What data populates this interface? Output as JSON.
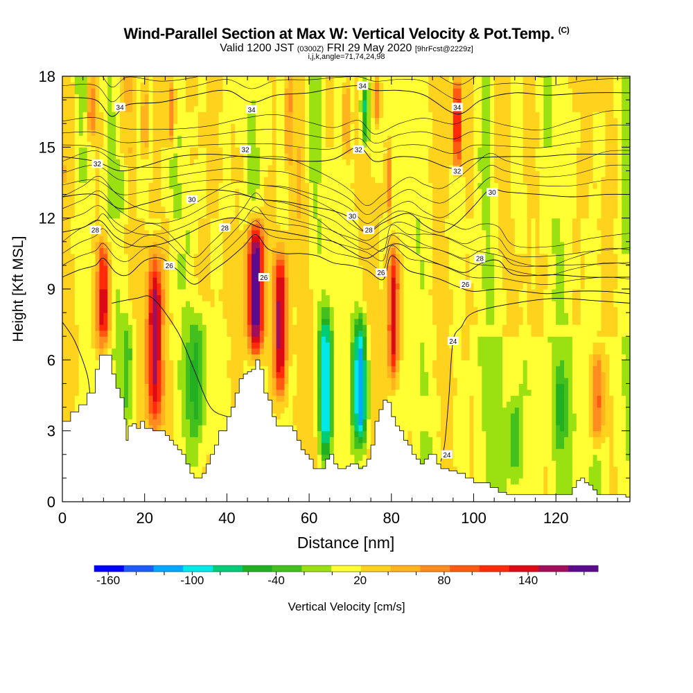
{
  "chart_data": {
    "type": "heatmap",
    "title": "Wind-Parallel Section at Max W: Vertical Velocity & Pot.Temp.",
    "title_mark": "(C)",
    "subtitle_a": "Valid 1200 JST",
    "subtitle_b": "(0300Z)",
    "subtitle_c": "FRI 29 May 2020",
    "subtitle_d": "[9hrFcst@2229z]",
    "subtitle_line2": "i,j,k,angle=71,74,24,98",
    "xlabel": "Distance [nm]",
    "ylabel": "Height [Kft MSL]",
    "xlim": [
      0,
      138
    ],
    "ylim": [
      0,
      18
    ],
    "x_ticks": [
      "0",
      "20",
      "40",
      "60",
      "80",
      "100",
      "120"
    ],
    "y_ticks": [
      "0",
      "3",
      "6",
      "9",
      "12",
      "15",
      "18"
    ],
    "colorbar": {
      "label": "Vertical Velocity [cm/s]",
      "min": -170,
      "max": 190,
      "step": 20,
      "tick_labels": [
        "-160",
        "-100",
        "-40",
        "20",
        "80",
        "140"
      ],
      "colors": [
        "#0000ff",
        "#1e5bff",
        "#00a8ff",
        "#00e8e8",
        "#00cc77",
        "#22b022",
        "#44c01e",
        "#9be010",
        "#ffff33",
        "#ffd21e",
        "#ffb41e",
        "#ff8c1e",
        "#ff5a14",
        "#ff2a0a",
        "#dc0a14",
        "#a0105a",
        "#5a0a8c"
      ]
    },
    "terrain_profile": [
      [
        0,
        3.4
      ],
      [
        2,
        3.8
      ],
      [
        4,
        4.1
      ],
      [
        6,
        4.6
      ],
      [
        8,
        5.6
      ],
      [
        9,
        6.2
      ],
      [
        11,
        6.2
      ],
      [
        12,
        5.4
      ],
      [
        13,
        4.8
      ],
      [
        14,
        4.4
      ],
      [
        15,
        3.5
      ],
      [
        15.5,
        2.6
      ],
      [
        16,
        3.2
      ],
      [
        17,
        3.3
      ],
      [
        18,
        3.1
      ],
      [
        19,
        3.4
      ],
      [
        20,
        3.1
      ],
      [
        22,
        3.0
      ],
      [
        24,
        3.0
      ],
      [
        25,
        2.8
      ],
      [
        26,
        2.6
      ],
      [
        27,
        2.4
      ],
      [
        28,
        2.2
      ],
      [
        29,
        2.0
      ],
      [
        30,
        1.6
      ],
      [
        31,
        1.2
      ],
      [
        32,
        1.0
      ],
      [
        33,
        1.0
      ],
      [
        34,
        1.2
      ],
      [
        35,
        1.6
      ],
      [
        36,
        2.0
      ],
      [
        37,
        2.4
      ],
      [
        38,
        3.0
      ],
      [
        40,
        3.6
      ],
      [
        41,
        4.0
      ],
      [
        42,
        4.6
      ],
      [
        43,
        5.2
      ],
      [
        44,
        5.4
      ],
      [
        45,
        5.5
      ],
      [
        46,
        5.6
      ],
      [
        47,
        6.0
      ],
      [
        48,
        5.6
      ],
      [
        49,
        4.6
      ],
      [
        50,
        4.3
      ],
      [
        51,
        3.6
      ],
      [
        52,
        3.2
      ],
      [
        55,
        3.2
      ],
      [
        56,
        3.0
      ],
      [
        57,
        2.6
      ],
      [
        58,
        2.2
      ],
      [
        59,
        2.0
      ],
      [
        60,
        1.8
      ],
      [
        61,
        1.4
      ],
      [
        62,
        1.4
      ],
      [
        63,
        1.4
      ],
      [
        64,
        1.8
      ],
      [
        65,
        2.0
      ],
      [
        66,
        1.6
      ],
      [
        67,
        1.4
      ],
      [
        68,
        1.4
      ],
      [
        69,
        1.5
      ],
      [
        70,
        1.6
      ],
      [
        71,
        1.6
      ],
      [
        72,
        1.4
      ],
      [
        73,
        1.5
      ],
      [
        74,
        1.8
      ],
      [
        75,
        2.4
      ],
      [
        76,
        3.4
      ],
      [
        77,
        3.9
      ],
      [
        78,
        4.3
      ],
      [
        79,
        4.2
      ],
      [
        80,
        3.6
      ],
      [
        81,
        3.2
      ],
      [
        82,
        3.0
      ],
      [
        83,
        2.6
      ],
      [
        84,
        2.4
      ],
      [
        85,
        2.0
      ],
      [
        86,
        1.8
      ],
      [
        87,
        1.6
      ],
      [
        88,
        1.8
      ],
      [
        89,
        2.0
      ],
      [
        90,
        2.0
      ],
      [
        91,
        1.6
      ],
      [
        92,
        1.4
      ],
      [
        93,
        1.4
      ],
      [
        94,
        1.3
      ],
      [
        96,
        1.2
      ],
      [
        98,
        1.0
      ],
      [
        100,
        0.8
      ],
      [
        102,
        0.8
      ],
      [
        104,
        0.6
      ],
      [
        106,
        0.4
      ],
      [
        108,
        0.3
      ],
      [
        110,
        0.3
      ],
      [
        112,
        0.3
      ],
      [
        114,
        0.3
      ],
      [
        116,
        0.3
      ],
      [
        118,
        0.3
      ],
      [
        120,
        0.3
      ],
      [
        122,
        0.3
      ],
      [
        124,
        0.6
      ],
      [
        125,
        0.9
      ],
      [
        126,
        1.0
      ],
      [
        127,
        0.8
      ],
      [
        128,
        0.7
      ],
      [
        129,
        0.5
      ],
      [
        130,
        0.3
      ],
      [
        132,
        0.3
      ],
      [
        134,
        0.3
      ],
      [
        136,
        0.3
      ],
      [
        137,
        0.2
      ],
      [
        138,
        0.2
      ]
    ],
    "updraft_cores": [
      {
        "x": 10,
        "y0": 6.5,
        "y1": 11,
        "w": 1.6,
        "peak": 120
      },
      {
        "x": 22.5,
        "y0": 3.2,
        "y1": 10.5,
        "w": 1.8,
        "peak": 140
      },
      {
        "x": 47,
        "y0": 6.2,
        "y1": 11.8,
        "w": 2.0,
        "peak": 190
      },
      {
        "x": 53,
        "y0": 4.5,
        "y1": 10.5,
        "w": 1.6,
        "peak": 140
      },
      {
        "x": 80.5,
        "y0": 5.2,
        "y1": 10.8,
        "w": 1.3,
        "peak": 120
      },
      {
        "x": 96,
        "y0": 14,
        "y1": 18,
        "w": 1.1,
        "peak": 120
      },
      {
        "x": 130,
        "y0": 2.4,
        "y1": 6.5,
        "w": 1.6,
        "peak": 85
      },
      {
        "x": 26.5,
        "y0": 15,
        "y1": 18,
        "w": 1.0,
        "peak": 80
      },
      {
        "x": 7,
        "y0": 15.5,
        "y1": 18,
        "w": 0.8,
        "peak": 70
      },
      {
        "x": 20,
        "y0": 14.5,
        "y1": 18,
        "w": 0.7,
        "peak": 60
      },
      {
        "x": 55,
        "y0": 14,
        "y1": 18,
        "w": 0.8,
        "peak": 60
      },
      {
        "x": 69,
        "y0": 14.5,
        "y1": 18,
        "w": 0.8,
        "peak": 70
      },
      {
        "x": 79.5,
        "y0": 12,
        "y1": 15,
        "w": 0.8,
        "peak": 60
      },
      {
        "x": 76.5,
        "y0": 16,
        "y1": 18,
        "w": 0.7,
        "peak": 60
      }
    ],
    "downdraft_cores": [
      {
        "x": 64,
        "y0": 1.8,
        "y1": 8.0,
        "w": 1.5,
        "peak": -110
      },
      {
        "x": 72.5,
        "y0": 2.4,
        "y1": 7.8,
        "w": 1.6,
        "peak": -125
      },
      {
        "x": 33,
        "y0": 2.8,
        "y1": 8.0,
        "w": 2.4,
        "peak": -60
      },
      {
        "x": 16,
        "y0": 3.5,
        "y1": 7.8,
        "w": 1.6,
        "peak": -45
      },
      {
        "x": 110,
        "y0": 0.8,
        "y1": 4.6,
        "w": 1.7,
        "peak": -40
      },
      {
        "x": 121,
        "y0": 2.2,
        "y1": 5.6,
        "w": 1.6,
        "peak": -35
      },
      {
        "x": 73.5,
        "y0": 15,
        "y1": 18,
        "w": 1.0,
        "peak": -90
      },
      {
        "x": 50,
        "y0": 14,
        "y1": 18,
        "w": 0.8,
        "peak": -30
      },
      {
        "x": 15,
        "y0": 12,
        "y1": 14.5,
        "w": 1.2,
        "peak": -30
      }
    ],
    "theta_contours": [
      {
        "level": "24",
        "points": [
          [
            0,
            7.6
          ],
          [
            3,
            6.8
          ],
          [
            6,
            5.4
          ],
          [
            7,
            4.2
          ],
          [
            8,
            4.3
          ]
        ]
      },
      {
        "level": "24",
        "points": [
          [
            12,
            8.4
          ],
          [
            18,
            8.6
          ],
          [
            22,
            8.6
          ],
          [
            28,
            7.2
          ],
          [
            32,
            5.6
          ],
          [
            36,
            4.0
          ],
          [
            40,
            3.6
          ]
        ]
      },
      {
        "level": "24",
        "points": [
          [
            92,
            1.7
          ],
          [
            93,
            2.5
          ],
          [
            94,
            4.5
          ],
          [
            95,
            6.8
          ],
          [
            97,
            7.4
          ],
          [
            100,
            8.0
          ],
          [
            110,
            8.4
          ],
          [
            120,
            8.6
          ],
          [
            130,
            8.5
          ],
          [
            138,
            8.4
          ]
        ]
      },
      {
        "level": "26",
        "points": [
          [
            0,
            9.5
          ],
          [
            4,
            9.8
          ],
          [
            8,
            10.0
          ],
          [
            10,
            10.3
          ],
          [
            13,
            9.7
          ],
          [
            16,
            9.6
          ],
          [
            20,
            10.2
          ],
          [
            24,
            10.3
          ],
          [
            28,
            9.8
          ],
          [
            32,
            9.2
          ],
          [
            36,
            9.7
          ],
          [
            40,
            10.2
          ],
          [
            44,
            10.8
          ],
          [
            47,
            11.3
          ],
          [
            50,
            10.7
          ],
          [
            54,
            10.5
          ],
          [
            58,
            10.5
          ],
          [
            62,
            10.4
          ],
          [
            66,
            10.1
          ],
          [
            70,
            10.0
          ],
          [
            74,
            9.8
          ],
          [
            78,
            9.4
          ],
          [
            80,
            10.4
          ],
          [
            84,
            9.8
          ],
          [
            88,
            9.6
          ],
          [
            92,
            9.4
          ],
          [
            96,
            9.1
          ],
          [
            100,
            8.9
          ],
          [
            106,
            9.0
          ],
          [
            112,
            8.9
          ],
          [
            118,
            8.8
          ],
          [
            124,
            8.9
          ],
          [
            132,
            8.9
          ],
          [
            138,
            8.8
          ]
        ]
      },
      {
        "level": "28",
        "points": [
          [
            0,
            11.4
          ],
          [
            5,
            11.6
          ],
          [
            9,
            11.9
          ],
          [
            13,
            11.2
          ],
          [
            18,
            10.8
          ],
          [
            24,
            10.9
          ],
          [
            30,
            11.3
          ],
          [
            36,
            11.8
          ],
          [
            42,
            12.0
          ],
          [
            48,
            11.6
          ],
          [
            54,
            11.4
          ],
          [
            60,
            11.2
          ],
          [
            66,
            11.0
          ],
          [
            70,
            10.6
          ],
          [
            74,
            10.3
          ],
          [
            78,
            10.7
          ],
          [
            82,
            10.9
          ],
          [
            88,
            10.3
          ],
          [
            94,
            9.9
          ],
          [
            98,
            9.7
          ],
          [
            102,
            10.1
          ],
          [
            106,
            10.2
          ],
          [
            110,
            9.6
          ],
          [
            120,
            9.6
          ],
          [
            128,
            9.5
          ],
          [
            138,
            9.5
          ]
        ]
      },
      {
        "level": "30",
        "points": [
          [
            0,
            12.9
          ],
          [
            8,
            13.0
          ],
          [
            14,
            12.4
          ],
          [
            20,
            12.6
          ],
          [
            26,
            12.9
          ],
          [
            30,
            13.1
          ],
          [
            36,
            13.2
          ],
          [
            42,
            13.1
          ],
          [
            48,
            12.8
          ],
          [
            54,
            12.7
          ],
          [
            60,
            12.5
          ],
          [
            66,
            12.3
          ],
          [
            70,
            12.0
          ],
          [
            74,
            11.4
          ],
          [
            78,
            11.8
          ],
          [
            84,
            12.2
          ],
          [
            88,
            11.7
          ],
          [
            92,
            11.4
          ],
          [
            96,
            11.8
          ],
          [
            100,
            12.5
          ],
          [
            104,
            13.2
          ],
          [
            108,
            13.1
          ],
          [
            116,
            13.0
          ],
          [
            124,
            12.9
          ],
          [
            132,
            13.0
          ],
          [
            138,
            13.0
          ]
        ]
      },
      {
        "level": "32",
        "points": [
          [
            0,
            14.6
          ],
          [
            8,
            14.4
          ],
          [
            14,
            14.0
          ],
          [
            20,
            14.2
          ],
          [
            28,
            14.6
          ],
          [
            36,
            14.7
          ],
          [
            44,
            14.6
          ],
          [
            52,
            14.5
          ],
          [
            60,
            14.4
          ],
          [
            66,
            14.5
          ],
          [
            72,
            15.0
          ],
          [
            76,
            14.4
          ],
          [
            82,
            14.6
          ],
          [
            88,
            14.5
          ],
          [
            95,
            14.1
          ],
          [
            100,
            14.5
          ],
          [
            108,
            14.6
          ],
          [
            116,
            14.6
          ],
          [
            124,
            14.7
          ],
          [
            132,
            14.7
          ],
          [
            138,
            14.7
          ]
        ]
      },
      {
        "level": "34",
        "points": [
          [
            0,
            17.1
          ],
          [
            8,
            17.0
          ],
          [
            12,
            16.3
          ],
          [
            16,
            16.8
          ],
          [
            24,
            16.9
          ],
          [
            32,
            17.2
          ],
          [
            40,
            17.4
          ],
          [
            46,
            16.9
          ],
          [
            52,
            17.2
          ],
          [
            60,
            17.3
          ],
          [
            66,
            17.5
          ],
          [
            72,
            17.6
          ],
          [
            76,
            17.4
          ],
          [
            82,
            17.4
          ],
          [
            88,
            17.2
          ],
          [
            96,
            16.4
          ],
          [
            102,
            17.0
          ],
          [
            110,
            17.3
          ],
          [
            118,
            17.2
          ],
          [
            128,
            17.3
          ],
          [
            138,
            17.3
          ]
        ]
      }
    ],
    "contour_labels": [
      {
        "text": "34",
        "x": 14,
        "y": 16.7
      },
      {
        "text": "34",
        "x": 46,
        "y": 16.6
      },
      {
        "text": "34",
        "x": 73,
        "y": 17.6
      },
      {
        "text": "34",
        "x": 96,
        "y": 16.7
      },
      {
        "text": "32",
        "x": 8.5,
        "y": 14.3
      },
      {
        "text": "32",
        "x": 44.5,
        "y": 14.9
      },
      {
        "text": "32",
        "x": 72,
        "y": 14.9
      },
      {
        "text": "32",
        "x": 96,
        "y": 14.0
      },
      {
        "text": "30",
        "x": 31.5,
        "y": 12.8
      },
      {
        "text": "30",
        "x": 70.5,
        "y": 12.1
      },
      {
        "text": "30",
        "x": 104.5,
        "y": 13.1
      },
      {
        "text": "28",
        "x": 8,
        "y": 11.5
      },
      {
        "text": "28",
        "x": 39.5,
        "y": 11.6
      },
      {
        "text": "28",
        "x": 74.5,
        "y": 11.5
      },
      {
        "text": "28",
        "x": 101.5,
        "y": 10.3
      },
      {
        "text": "26",
        "x": 26,
        "y": 10.0
      },
      {
        "text": "26",
        "x": 49,
        "y": 9.5
      },
      {
        "text": "26",
        "x": 77.5,
        "y": 9.7
      },
      {
        "text": "26",
        "x": 98,
        "y": 9.2
      },
      {
        "text": "24",
        "x": 95,
        "y": 6.8
      },
      {
        "text": "24",
        "x": 93.5,
        "y": 2.0
      }
    ]
  }
}
